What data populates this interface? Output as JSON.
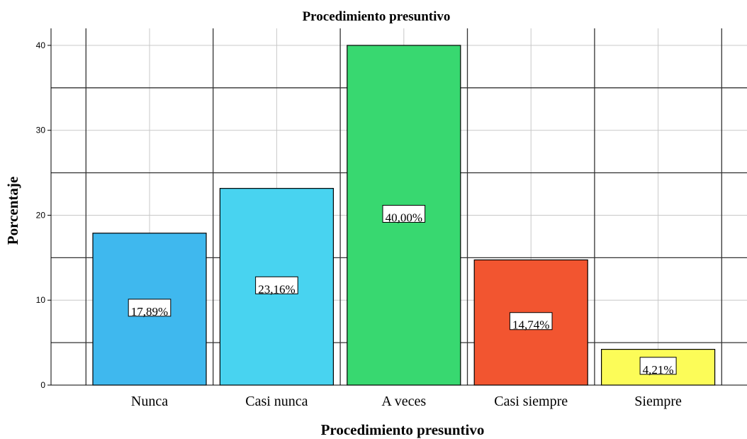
{
  "chart_data": {
    "type": "bar",
    "title": "Procedimiento presuntivo",
    "xlabel": "Procedimiento presuntivo",
    "ylabel": "Porcentaje",
    "categories": [
      "Nunca",
      "Casi nunca",
      "A veces",
      "Casi siempre",
      "Siempre"
    ],
    "values": [
      17.89,
      23.16,
      40.0,
      14.74,
      4.21
    ],
    "data_labels": [
      "17,89%",
      "23,16%",
      "40,00%",
      "14,74%",
      "4,21%"
    ],
    "colors": [
      "#3fb8ee",
      "#48d3f0",
      "#38d870",
      "#f25530",
      "#fcfc58"
    ],
    "ylim": [
      0,
      42
    ],
    "yticks": [
      0,
      10,
      20,
      30,
      40
    ],
    "grid": true,
    "legend": "none"
  }
}
